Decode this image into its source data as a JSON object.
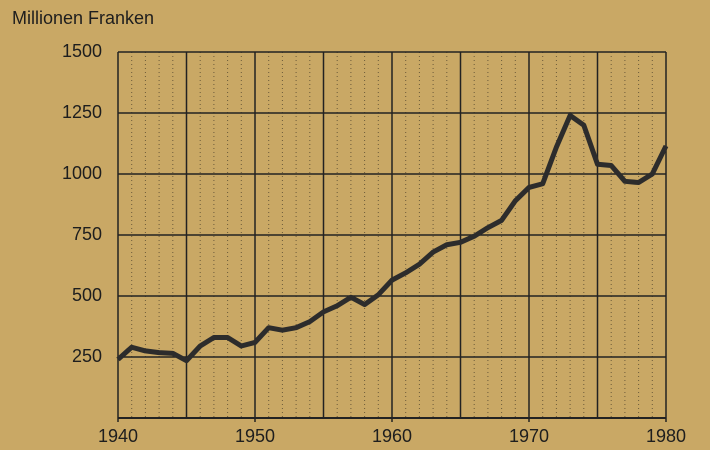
{
  "chart_data": {
    "type": "line",
    "title": "Millionen Franken",
    "x": [
      1940,
      1941,
      1942,
      1943,
      1944,
      1945,
      1946,
      1947,
      1948,
      1949,
      1950,
      1951,
      1952,
      1953,
      1954,
      1955,
      1956,
      1957,
      1958,
      1959,
      1960,
      1961,
      1962,
      1963,
      1964,
      1965,
      1966,
      1967,
      1968,
      1969,
      1970,
      1971,
      1972,
      1973,
      1974,
      1975,
      1976,
      1977,
      1978,
      1979,
      1980
    ],
    "series": [
      {
        "color": "#2c2c2c",
        "values": [
          240,
          290,
          275,
          268,
          265,
          235,
          295,
          330,
          330,
          295,
          310,
          370,
          360,
          370,
          395,
          435,
          460,
          495,
          465,
          505,
          565,
          595,
          630,
          680,
          710,
          720,
          745,
          780,
          810,
          890,
          945,
          960,
          1110,
          1240,
          1200,
          1040,
          1035,
          970,
          965,
          1000,
          1115
        ]
      }
    ],
    "xlim": [
      1940,
      1980
    ],
    "xticks": [
      1940,
      1950,
      1960,
      1970,
      1980
    ],
    "ylim": [
      0,
      1500
    ],
    "yticks": [
      250,
      500,
      750,
      1000,
      1250,
      1500
    ],
    "grid": true,
    "xgrid_step": 5,
    "minor_xgrid_step": 1
  }
}
